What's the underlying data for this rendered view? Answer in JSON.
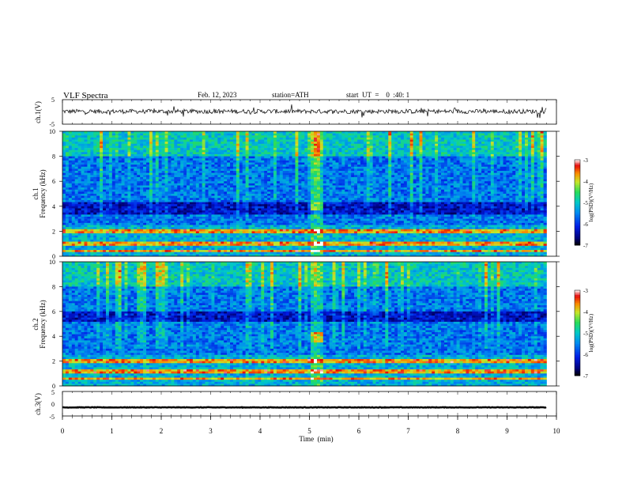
{
  "header": {
    "title": "VLF  Spectra",
    "date": "Feb. 12, 2023",
    "station": "station=ATH",
    "start_ut": "start  UT  =    0  :40: 1"
  },
  "chart_data": [
    {
      "type": "line",
      "name": "ch1-waveform",
      "ylabel": "ch.1(V)",
      "yticks": [
        "5",
        "-5"
      ],
      "ylim": [
        -5,
        5
      ],
      "x_range_min": [
        0,
        9.8
      ],
      "baseline_v": 0.2,
      "amplitude_v": 1.5,
      "color": "#000000"
    },
    {
      "type": "heatmap",
      "name": "ch1-spectrogram",
      "ylabel": "ch.1\nFrequency  (kHz)",
      "ylabel_lines": [
        "ch.1",
        "Frequency  (kHz)"
      ],
      "yticks": [
        "0",
        "2",
        "4",
        "6",
        "8",
        "10"
      ],
      "ylim": [
        0,
        10
      ],
      "x_range_min": [
        0,
        9.8
      ],
      "colorbar": {
        "label": "log(PSD)(V²/Hz)",
        "ticks": [
          "-3",
          "-4",
          "-5",
          "-6",
          "-7"
        ],
        "range": [
          -7,
          -3
        ]
      },
      "features": {
        "dark_band_khz": [
          3.4,
          4.4
        ],
        "transmitter_khz": [
          0.4,
          1.0,
          2.0
        ],
        "burst_time_min": [
          5.0,
          5.3
        ],
        "burst_freq_khz": 4.0
      }
    },
    {
      "type": "heatmap",
      "name": "ch2-spectrogram",
      "ylabel": "ch.2\nFrequency  (kHz)",
      "ylabel_lines": [
        "ch.2",
        "Frequency  (kHz)"
      ],
      "yticks": [
        "0",
        "2",
        "4",
        "6",
        "8",
        "10"
      ],
      "ylim": [
        0,
        10
      ],
      "x_range_min": [
        0,
        9.8
      ],
      "colorbar": {
        "label": "log(PSD)(V²/Hz)",
        "ticks": [
          "-3",
          "-4",
          "-5",
          "-6",
          "-7"
        ],
        "range": [
          -7,
          -3
        ]
      },
      "features": {
        "dark_band_khz": [
          5.2,
          6.0
        ],
        "transmitter_khz": [
          0.6,
          1.2,
          2.0
        ],
        "burst_time_min": [
          5.0,
          5.3
        ],
        "burst_freq_khz": 3.9
      }
    },
    {
      "type": "line",
      "name": "ch3-waveform",
      "ylabel": "ch.3(V)",
      "yticks": [
        "5",
        "0",
        "-5"
      ],
      "ylim": [
        -5,
        5
      ],
      "x_range_min": [
        0,
        9.8
      ],
      "baseline_v": -1.5,
      "amplitude_v": 0.2,
      "color": "#000000"
    }
  ],
  "x_axis": {
    "label": "Time  (min)",
    "ticks": [
      "0",
      "1",
      "2",
      "3",
      "4",
      "5",
      "6",
      "7",
      "8",
      "9",
      "10"
    ],
    "xlim": [
      0,
      10
    ]
  }
}
